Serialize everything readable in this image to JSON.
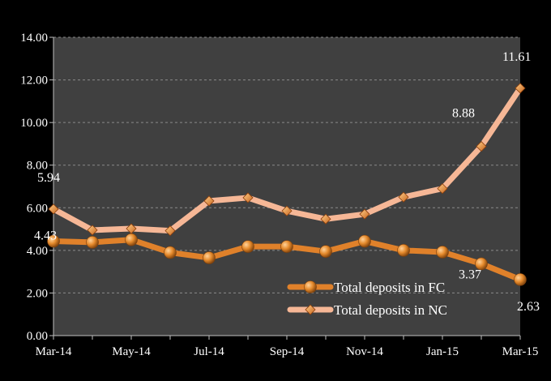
{
  "chart_data": {
    "type": "line",
    "x": [
      "Mar-14",
      "Apr-14",
      "May-14",
      "Jun-14",
      "Jul-14",
      "Aug-14",
      "Sep-14",
      "Oct-14",
      "Nov-14",
      "Dec-14",
      "Jan-15",
      "Feb-15",
      "Mar-15"
    ],
    "x_tick_labels": [
      "Mar-14",
      "May-14",
      "Jul-14",
      "Sep-14",
      "Nov-14",
      "Jan-15",
      "Mar-15"
    ],
    "ylim": [
      0,
      14
    ],
    "y_ticks": [
      "0.00",
      "2.00",
      "4.00",
      "6.00",
      "8.00",
      "10.00",
      "12.00",
      "14.00"
    ],
    "grid": true,
    "legend_position": "bottom-right",
    "series": [
      {
        "name": "Total deposits in FC",
        "color": "#e0812a",
        "marker": "circle",
        "values": [
          4.43,
          4.38,
          4.5,
          3.9,
          3.65,
          4.18,
          4.18,
          3.95,
          4.43,
          4.0,
          3.92,
          3.37,
          2.63
        ],
        "labels": [
          {
            "index": 0,
            "text": "4.43"
          },
          {
            "index": 11,
            "text": "3.37"
          },
          {
            "index": 12,
            "text": "2.63"
          }
        ]
      },
      {
        "name": "Total deposits in NC",
        "color": "#f6b796",
        "marker": "diamond",
        "values": [
          5.94,
          4.95,
          5.02,
          4.92,
          6.32,
          6.47,
          5.85,
          5.47,
          5.7,
          6.5,
          6.9,
          8.88,
          11.61
        ],
        "labels": [
          {
            "index": 0,
            "text": "5.94"
          },
          {
            "index": 11,
            "text": "8.88"
          },
          {
            "index": 12,
            "text": "11.61"
          }
        ]
      }
    ]
  }
}
